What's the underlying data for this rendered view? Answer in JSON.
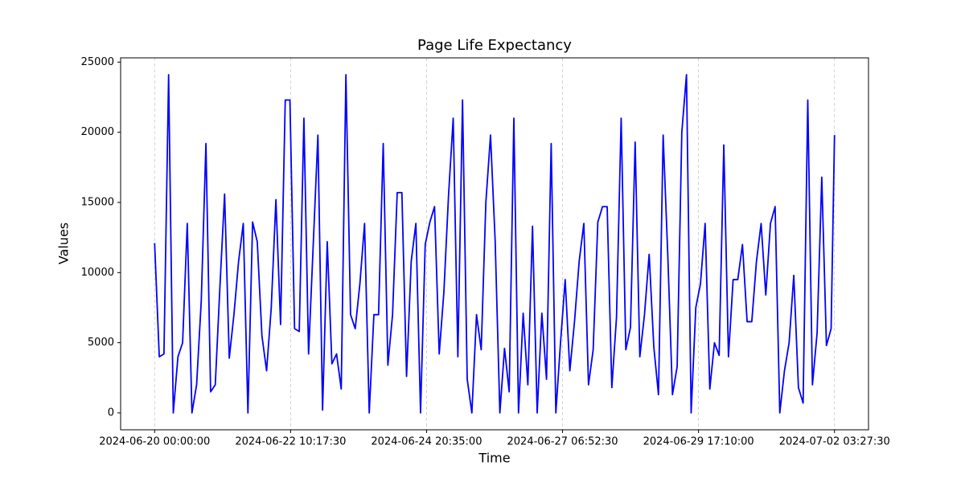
{
  "chart_data": {
    "type": "line",
    "title": "Page Life Expectancy",
    "x_label": "Time",
    "y_label": "Values",
    "color": "#0000ff",
    "grid": "x",
    "xlim": [
      "2024-06-19 09:25:37",
      "2024-07-02 18:01:53"
    ],
    "xticks": [
      "2024-06-20 00:00:00",
      "2024-06-22 10:17:30",
      "2024-06-24 20:35:00",
      "2024-06-27 06:52:30",
      "2024-06-29 17:10:00",
      "2024-07-02 03:27:30"
    ],
    "ylim": [
      -1205,
      25305
    ],
    "yticks": [
      0,
      5000,
      10000,
      15000,
      20000,
      25000
    ],
    "x": [
      "2024-06-20 00:00:00",
      "2024-06-20 02:00:00",
      "2024-06-20 04:00:00",
      "2024-06-20 06:00:00",
      "2024-06-20 08:00:00",
      "2024-06-20 10:00:00",
      "2024-06-20 12:00:00",
      "2024-06-20 14:00:00",
      "2024-06-20 16:00:00",
      "2024-06-20 18:00:00",
      "2024-06-20 20:00:00",
      "2024-06-20 22:00:00",
      "2024-06-21 00:00:00",
      "2024-06-21 02:00:00",
      "2024-06-21 04:00:00",
      "2024-06-21 06:00:00",
      "2024-06-21 08:00:00",
      "2024-06-21 10:00:00",
      "2024-06-21 12:00:00",
      "2024-06-21 14:00:00",
      "2024-06-21 16:00:00",
      "2024-06-21 18:00:00",
      "2024-06-21 20:00:00",
      "2024-06-21 22:00:00",
      "2024-06-22 00:00:00",
      "2024-06-22 02:00:00",
      "2024-06-22 04:00:00",
      "2024-06-22 06:00:00",
      "2024-06-22 08:00:00",
      "2024-06-22 10:00:00",
      "2024-06-22 12:00:00",
      "2024-06-22 14:00:00",
      "2024-06-22 16:00:00",
      "2024-06-22 18:00:00",
      "2024-06-22 20:00:00",
      "2024-06-22 22:00:00",
      "2024-06-23 00:00:00",
      "2024-06-23 02:00:00",
      "2024-06-23 04:00:00",
      "2024-06-23 06:00:00",
      "2024-06-23 08:00:00",
      "2024-06-23 10:00:00",
      "2024-06-23 12:00:00",
      "2024-06-23 14:00:00",
      "2024-06-23 16:00:00",
      "2024-06-23 18:00:00",
      "2024-06-23 20:00:00",
      "2024-06-23 22:00:00",
      "2024-06-24 00:00:00",
      "2024-06-24 02:00:00",
      "2024-06-24 04:00:00",
      "2024-06-24 06:00:00",
      "2024-06-24 08:00:00",
      "2024-06-24 10:00:00",
      "2024-06-24 12:00:00",
      "2024-06-24 14:00:00",
      "2024-06-24 16:00:00",
      "2024-06-24 18:00:00",
      "2024-06-24 20:00:00",
      "2024-06-24 22:00:00",
      "2024-06-25 00:00:00",
      "2024-06-25 02:00:00",
      "2024-06-25 04:00:00",
      "2024-06-25 06:00:00",
      "2024-06-25 08:00:00",
      "2024-06-25 10:00:00",
      "2024-06-25 12:00:00",
      "2024-06-25 14:00:00",
      "2024-06-25 16:00:00",
      "2024-06-25 18:00:00",
      "2024-06-25 20:00:00",
      "2024-06-25 22:00:00",
      "2024-06-26 00:00:00",
      "2024-06-26 02:00:00",
      "2024-06-26 04:00:00",
      "2024-06-26 06:00:00",
      "2024-06-26 08:00:00",
      "2024-06-26 10:00:00",
      "2024-06-26 12:00:00",
      "2024-06-26 14:00:00",
      "2024-06-26 16:00:00",
      "2024-06-26 18:00:00",
      "2024-06-26 20:00:00",
      "2024-06-26 22:00:00",
      "2024-06-27 00:00:00",
      "2024-06-27 02:00:00",
      "2024-06-27 04:00:00",
      "2024-06-27 06:00:00",
      "2024-06-27 08:00:00",
      "2024-06-27 10:00:00",
      "2024-06-27 12:00:00",
      "2024-06-27 14:00:00",
      "2024-06-27 16:00:00",
      "2024-06-27 18:00:00",
      "2024-06-27 20:00:00",
      "2024-06-27 22:00:00",
      "2024-06-28 00:00:00",
      "2024-06-28 02:00:00",
      "2024-06-28 04:00:00",
      "2024-06-28 06:00:00",
      "2024-06-28 08:00:00",
      "2024-06-28 10:00:00",
      "2024-06-28 12:00:00",
      "2024-06-28 14:00:00",
      "2024-06-28 16:00:00",
      "2024-06-28 18:00:00",
      "2024-06-28 20:00:00",
      "2024-06-28 22:00:00",
      "2024-06-29 00:00:00",
      "2024-06-29 02:00:00",
      "2024-06-29 04:00:00",
      "2024-06-29 06:00:00",
      "2024-06-29 08:00:00",
      "2024-06-29 10:00:00",
      "2024-06-29 12:00:00",
      "2024-06-29 14:00:00",
      "2024-06-29 16:00:00",
      "2024-06-29 18:00:00",
      "2024-06-29 20:00:00",
      "2024-06-29 22:00:00",
      "2024-06-30 00:00:00",
      "2024-06-30 02:00:00",
      "2024-06-30 04:00:00",
      "2024-06-30 06:00:00",
      "2024-06-30 08:00:00",
      "2024-06-30 10:00:00",
      "2024-06-30 12:00:00",
      "2024-06-30 14:00:00",
      "2024-06-30 16:00:00",
      "2024-06-30 18:00:00",
      "2024-06-30 20:00:00",
      "2024-06-30 22:00:00",
      "2024-07-01 00:00:00",
      "2024-07-01 02:00:00",
      "2024-07-01 04:00:00",
      "2024-07-01 06:00:00",
      "2024-07-01 08:00:00",
      "2024-07-01 10:00:00",
      "2024-07-01 12:00:00",
      "2024-07-01 14:00:00",
      "2024-07-01 16:00:00",
      "2024-07-01 18:00:00",
      "2024-07-01 20:00:00",
      "2024-07-01 22:00:00",
      "2024-07-02 00:00:00",
      "2024-07-02 02:00:00",
      "2024-07-02 03:27:30"
    ],
    "values": [
      12100,
      4000,
      4200,
      24100,
      0,
      4000,
      5000,
      13500,
      0,
      2000,
      8000,
      19200,
      1500,
      2000,
      9000,
      15600,
      3900,
      7000,
      10800,
      13500,
      0,
      13600,
      12200,
      5500,
      3000,
      7500,
      15200,
      6300,
      22300,
      22300,
      6000,
      5800,
      21000,
      4200,
      12000,
      19800,
      200,
      12200,
      3500,
      4200,
      1700,
      24100,
      7000,
      6000,
      9200,
      13500,
      0,
      7000,
      7000,
      19200,
      3400,
      7000,
      15700,
      15700,
      2600,
      10800,
      13500,
      0,
      12000,
      13600,
      14700,
      4200,
      8600,
      15500,
      21000,
      4000,
      22300,
      2400,
      0,
      7000,
      4500,
      15000,
      19800,
      12200,
      0,
      4600,
      1500,
      21000,
      0,
      7100,
      2000,
      13300,
      0,
      7100,
      2400,
      19200,
      0,
      5000,
      9500,
      3000,
      6500,
      10800,
      13500,
      2000,
      4500,
      13600,
      14700,
      14700,
      1800,
      6800,
      21000,
      4500,
      6100,
      19300,
      4000,
      7000,
      11300,
      4700,
      1300,
      19800,
      11200,
      1300,
      3300,
      20000,
      24100,
      0,
      7500,
      9200,
      13500,
      1700,
      5000,
      4100,
      19100,
      4000,
      9500,
      9500,
      12000,
      6500,
      6500,
      10800,
      13500,
      8400,
      13500,
      14700,
      0,
      3000,
      5000,
      9800,
      1800,
      700,
      22300,
      2000,
      5700,
      16800,
      4800,
      6000,
      19800
    ]
  }
}
